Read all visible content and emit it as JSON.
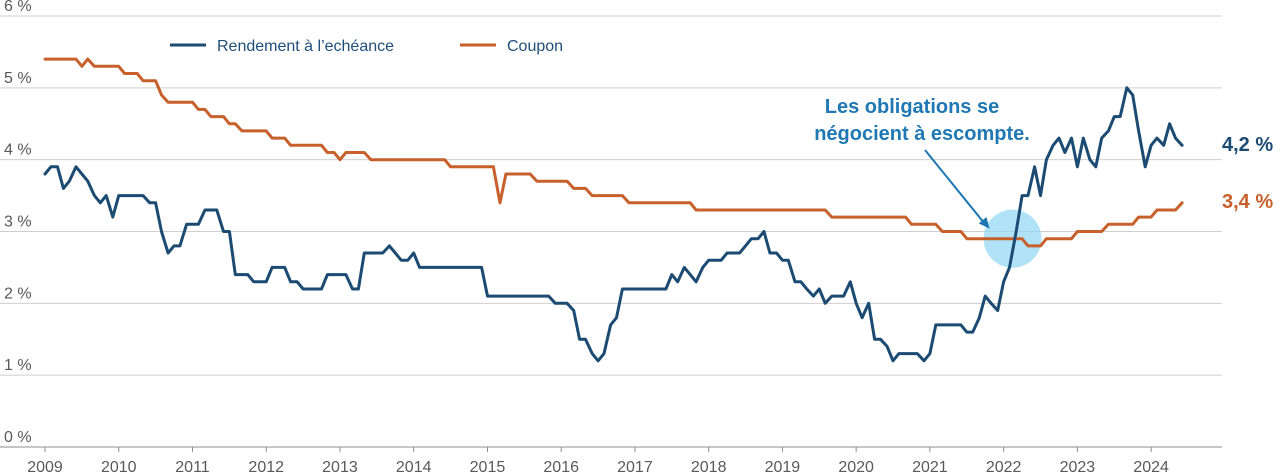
{
  "chart_data": {
    "type": "line",
    "title": "",
    "xlabel": "",
    "ylabel": "",
    "ylim": [
      0,
      6
    ],
    "y_ticks": [
      {
        "value": 0,
        "label": "0 %"
      },
      {
        "value": 1,
        "label": "1 %"
      },
      {
        "value": 2,
        "label": "2 %"
      },
      {
        "value": 3,
        "label": "3 %"
      },
      {
        "value": 4,
        "label": "4 %"
      },
      {
        "value": 5,
        "label": "5 %"
      },
      {
        "value": 6,
        "label": "6 %"
      }
    ],
    "x_range": [
      2009.0,
      2024.5
    ],
    "x_ticks": [
      {
        "value": 2009,
        "label": "2009"
      },
      {
        "value": 2010,
        "label": "2010"
      },
      {
        "value": 2011,
        "label": "2011"
      },
      {
        "value": 2012,
        "label": "2012"
      },
      {
        "value": 2013,
        "label": "2013"
      },
      {
        "value": 2014,
        "label": "2014"
      },
      {
        "value": 2015,
        "label": "2015"
      },
      {
        "value": 2016,
        "label": "2016"
      },
      {
        "value": 2017,
        "label": "2017"
      },
      {
        "value": 2018,
        "label": "2018"
      },
      {
        "value": 2019,
        "label": "2019"
      },
      {
        "value": 2020,
        "label": "2020"
      },
      {
        "value": 2021,
        "label": "2021"
      },
      {
        "value": 2022,
        "label": "2022"
      },
      {
        "value": 2023,
        "label": "2023"
      },
      {
        "value": 2024,
        "label": "2024"
      }
    ],
    "grid": "horizontal",
    "legend_position": "top-left",
    "series": [
      {
        "name": "Rendement à l’echéance",
        "color": "#1b4a72",
        "end_label": "4,2 %",
        "points": [
          [
            2009.0,
            3.8
          ],
          [
            2009.08,
            3.9
          ],
          [
            2009.17,
            3.9
          ],
          [
            2009.25,
            3.6
          ],
          [
            2009.33,
            3.7
          ],
          [
            2009.42,
            3.9
          ],
          [
            2009.5,
            3.8
          ],
          [
            2009.58,
            3.7
          ],
          [
            2009.67,
            3.5
          ],
          [
            2009.75,
            3.4
          ],
          [
            2009.83,
            3.5
          ],
          [
            2009.92,
            3.2
          ],
          [
            2010.0,
            3.5
          ],
          [
            2010.08,
            3.5
          ],
          [
            2010.17,
            3.5
          ],
          [
            2010.25,
            3.5
          ],
          [
            2010.33,
            3.5
          ],
          [
            2010.42,
            3.4
          ],
          [
            2010.5,
            3.4
          ],
          [
            2010.58,
            3.0
          ],
          [
            2010.67,
            2.7
          ],
          [
            2010.75,
            2.8
          ],
          [
            2010.83,
            2.8
          ],
          [
            2010.92,
            3.1
          ],
          [
            2011.0,
            3.1
          ],
          [
            2011.08,
            3.1
          ],
          [
            2011.17,
            3.3
          ],
          [
            2011.25,
            3.3
          ],
          [
            2011.33,
            3.3
          ],
          [
            2011.42,
            3.0
          ],
          [
            2011.5,
            3.0
          ],
          [
            2011.58,
            2.4
          ],
          [
            2011.67,
            2.4
          ],
          [
            2011.75,
            2.4
          ],
          [
            2011.83,
            2.3
          ],
          [
            2011.92,
            2.3
          ],
          [
            2012.0,
            2.3
          ],
          [
            2012.08,
            2.5
          ],
          [
            2012.17,
            2.5
          ],
          [
            2012.25,
            2.5
          ],
          [
            2012.33,
            2.3
          ],
          [
            2012.42,
            2.3
          ],
          [
            2012.5,
            2.2
          ],
          [
            2012.58,
            2.2
          ],
          [
            2012.67,
            2.2
          ],
          [
            2012.75,
            2.2
          ],
          [
            2012.83,
            2.4
          ],
          [
            2012.92,
            2.4
          ],
          [
            2013.0,
            2.4
          ],
          [
            2013.08,
            2.4
          ],
          [
            2013.17,
            2.2
          ],
          [
            2013.25,
            2.2
          ],
          [
            2013.33,
            2.7
          ],
          [
            2013.42,
            2.7
          ],
          [
            2013.5,
            2.7
          ],
          [
            2013.58,
            2.7
          ],
          [
            2013.67,
            2.8
          ],
          [
            2013.75,
            2.7
          ],
          [
            2013.83,
            2.6
          ],
          [
            2013.92,
            2.6
          ],
          [
            2014.0,
            2.7
          ],
          [
            2014.08,
            2.5
          ],
          [
            2014.17,
            2.5
          ],
          [
            2014.25,
            2.5
          ],
          [
            2014.5,
            2.5
          ],
          [
            2014.75,
            2.5
          ],
          [
            2014.92,
            2.5
          ],
          [
            2015.0,
            2.1
          ],
          [
            2015.25,
            2.1
          ],
          [
            2015.5,
            2.1
          ],
          [
            2015.67,
            2.1
          ],
          [
            2015.83,
            2.1
          ],
          [
            2015.92,
            2.0
          ],
          [
            2016.08,
            2.0
          ],
          [
            2016.17,
            1.9
          ],
          [
            2016.25,
            1.5
          ],
          [
            2016.33,
            1.5
          ],
          [
            2016.42,
            1.3
          ],
          [
            2016.5,
            1.2
          ],
          [
            2016.58,
            1.3
          ],
          [
            2016.67,
            1.7
          ],
          [
            2016.75,
            1.8
          ],
          [
            2016.83,
            2.2
          ],
          [
            2016.92,
            2.2
          ],
          [
            2017.0,
            2.2
          ],
          [
            2017.25,
            2.2
          ],
          [
            2017.42,
            2.2
          ],
          [
            2017.5,
            2.4
          ],
          [
            2017.58,
            2.3
          ],
          [
            2017.67,
            2.5
          ],
          [
            2017.75,
            2.4
          ],
          [
            2017.83,
            2.3
          ],
          [
            2017.92,
            2.5
          ],
          [
            2018.0,
            2.6
          ],
          [
            2018.17,
            2.6
          ],
          [
            2018.25,
            2.7
          ],
          [
            2018.42,
            2.7
          ],
          [
            2018.5,
            2.8
          ],
          [
            2018.58,
            2.9
          ],
          [
            2018.67,
            2.9
          ],
          [
            2018.75,
            3.0
          ],
          [
            2018.83,
            2.7
          ],
          [
            2018.92,
            2.7
          ],
          [
            2019.0,
            2.6
          ],
          [
            2019.08,
            2.6
          ],
          [
            2019.17,
            2.3
          ],
          [
            2019.25,
            2.3
          ],
          [
            2019.33,
            2.2
          ],
          [
            2019.42,
            2.1
          ],
          [
            2019.5,
            2.2
          ],
          [
            2019.58,
            2.0
          ],
          [
            2019.67,
            2.1
          ],
          [
            2019.75,
            2.1
          ],
          [
            2019.83,
            2.1
          ],
          [
            2019.92,
            2.3
          ],
          [
            2020.0,
            2.0
          ],
          [
            2020.08,
            1.8
          ],
          [
            2020.17,
            2.0
          ],
          [
            2020.25,
            1.5
          ],
          [
            2020.33,
            1.5
          ],
          [
            2020.42,
            1.4
          ],
          [
            2020.5,
            1.2
          ],
          [
            2020.58,
            1.3
          ],
          [
            2020.67,
            1.3
          ],
          [
            2020.75,
            1.3
          ],
          [
            2020.83,
            1.3
          ],
          [
            2020.92,
            1.2
          ],
          [
            2021.0,
            1.3
          ],
          [
            2021.08,
            1.7
          ],
          [
            2021.17,
            1.7
          ],
          [
            2021.25,
            1.7
          ],
          [
            2021.33,
            1.7
          ],
          [
            2021.42,
            1.7
          ],
          [
            2021.5,
            1.6
          ],
          [
            2021.58,
            1.6
          ],
          [
            2021.67,
            1.8
          ],
          [
            2021.75,
            2.1
          ],
          [
            2021.83,
            2.0
          ],
          [
            2021.92,
            1.9
          ],
          [
            2022.0,
            2.3
          ],
          [
            2022.08,
            2.5
          ],
          [
            2022.17,
            3.0
          ],
          [
            2022.25,
            3.5
          ],
          [
            2022.33,
            3.5
          ],
          [
            2022.42,
            3.9
          ],
          [
            2022.5,
            3.5
          ],
          [
            2022.58,
            4.0
          ],
          [
            2022.67,
            4.2
          ],
          [
            2022.75,
            4.3
          ],
          [
            2022.83,
            4.1
          ],
          [
            2022.92,
            4.3
          ],
          [
            2023.0,
            3.9
          ],
          [
            2023.08,
            4.3
          ],
          [
            2023.17,
            4.0
          ],
          [
            2023.25,
            3.9
          ],
          [
            2023.33,
            4.3
          ],
          [
            2023.42,
            4.4
          ],
          [
            2023.5,
            4.6
          ],
          [
            2023.58,
            4.6
          ],
          [
            2023.67,
            5.0
          ],
          [
            2023.75,
            4.9
          ],
          [
            2023.83,
            4.4
          ],
          [
            2023.92,
            3.9
          ],
          [
            2024.0,
            4.2
          ],
          [
            2024.08,
            4.3
          ],
          [
            2024.17,
            4.2
          ],
          [
            2024.25,
            4.5
          ],
          [
            2024.33,
            4.3
          ],
          [
            2024.42,
            4.2
          ]
        ]
      },
      {
        "name": "Coupon",
        "color": "#c8602b",
        "end_label": "3,4 %",
        "points": [
          [
            2009.0,
            5.4
          ],
          [
            2009.25,
            5.4
          ],
          [
            2009.42,
            5.4
          ],
          [
            2009.5,
            5.3
          ],
          [
            2009.58,
            5.4
          ],
          [
            2009.67,
            5.3
          ],
          [
            2009.83,
            5.3
          ],
          [
            2010.0,
            5.3
          ],
          [
            2010.08,
            5.2
          ],
          [
            2010.25,
            5.2
          ],
          [
            2010.33,
            5.1
          ],
          [
            2010.5,
            5.1
          ],
          [
            2010.58,
            4.9
          ],
          [
            2010.67,
            4.8
          ],
          [
            2011.0,
            4.8
          ],
          [
            2011.08,
            4.7
          ],
          [
            2011.17,
            4.7
          ],
          [
            2011.25,
            4.6
          ],
          [
            2011.42,
            4.6
          ],
          [
            2011.5,
            4.5
          ],
          [
            2011.58,
            4.5
          ],
          [
            2011.67,
            4.4
          ],
          [
            2012.0,
            4.4
          ],
          [
            2012.08,
            4.3
          ],
          [
            2012.25,
            4.3
          ],
          [
            2012.33,
            4.2
          ],
          [
            2012.75,
            4.2
          ],
          [
            2012.83,
            4.1
          ],
          [
            2012.92,
            4.1
          ],
          [
            2013.0,
            4.0
          ],
          [
            2013.08,
            4.1
          ],
          [
            2013.33,
            4.1
          ],
          [
            2013.42,
            4.0
          ],
          [
            2014.42,
            4.0
          ],
          [
            2014.5,
            3.9
          ],
          [
            2015.08,
            3.9
          ],
          [
            2015.17,
            3.4
          ],
          [
            2015.25,
            3.8
          ],
          [
            2015.58,
            3.8
          ],
          [
            2015.67,
            3.7
          ],
          [
            2016.08,
            3.7
          ],
          [
            2016.17,
            3.6
          ],
          [
            2016.33,
            3.6
          ],
          [
            2016.42,
            3.5
          ],
          [
            2016.83,
            3.5
          ],
          [
            2016.92,
            3.4
          ],
          [
            2017.75,
            3.4
          ],
          [
            2017.83,
            3.3
          ],
          [
            2019.58,
            3.3
          ],
          [
            2019.67,
            3.2
          ],
          [
            2020.67,
            3.2
          ],
          [
            2020.75,
            3.1
          ],
          [
            2021.08,
            3.1
          ],
          [
            2021.17,
            3.0
          ],
          [
            2021.42,
            3.0
          ],
          [
            2021.5,
            2.9
          ],
          [
            2022.25,
            2.9
          ],
          [
            2022.33,
            2.8
          ],
          [
            2022.5,
            2.8
          ],
          [
            2022.58,
            2.9
          ],
          [
            2022.92,
            2.9
          ],
          [
            2023.0,
            3.0
          ],
          [
            2023.33,
            3.0
          ],
          [
            2023.42,
            3.1
          ],
          [
            2023.75,
            3.1
          ],
          [
            2023.83,
            3.2
          ],
          [
            2024.0,
            3.2
          ],
          [
            2024.08,
            3.3
          ],
          [
            2024.33,
            3.3
          ],
          [
            2024.42,
            3.4
          ]
        ]
      }
    ],
    "annotation": {
      "line1": "Les obligations se",
      "line2": "négocient à escompte.",
      "color": "#1f78b4",
      "target": {
        "x": 2022.08,
        "y": 2.9
      },
      "highlight_color": "#8fd5f5"
    }
  }
}
